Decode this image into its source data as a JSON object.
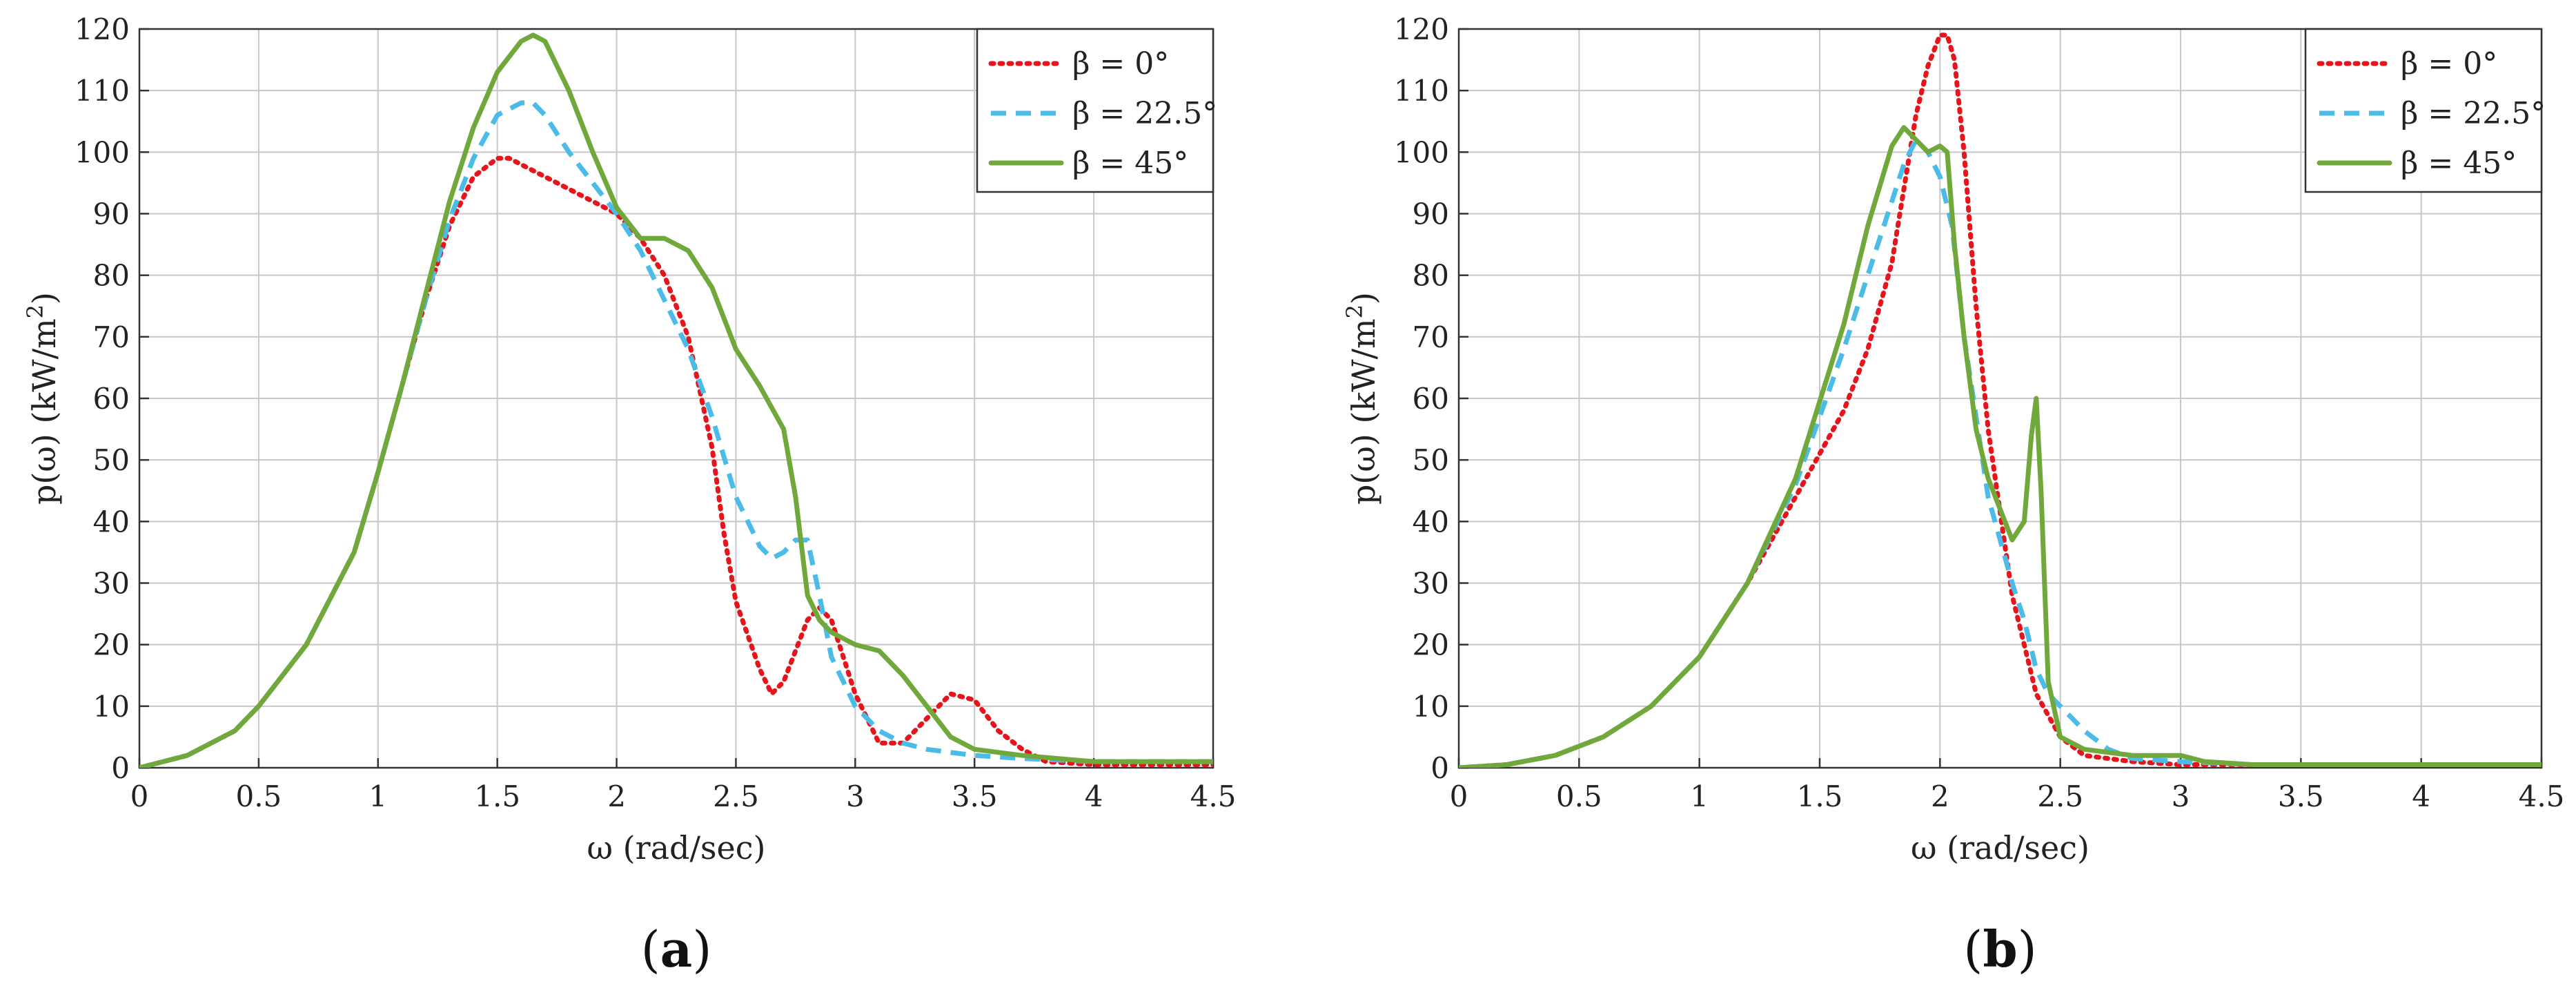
{
  "chart_data": [
    {
      "type": "line",
      "panel_label": "a",
      "xlabel": "ω (rad/sec)",
      "ylabel": "p(ω) (kW/m",
      "ylabel_sup": "2",
      "ylabel_close": ")",
      "xlim": [
        0,
        4.5
      ],
      "ylim": [
        0,
        120
      ],
      "xticks": [
        0,
        0.5,
        1,
        1.5,
        2,
        2.5,
        3,
        3.5,
        4,
        4.5
      ],
      "yticks": [
        0,
        10,
        20,
        30,
        40,
        50,
        60,
        70,
        80,
        90,
        100,
        110,
        120
      ],
      "grid": true,
      "legend_position": "top-right",
      "series": [
        {
          "name": "β = 0°",
          "color": "#e8141c",
          "style": "dotted",
          "x": [
            0,
            0.2,
            0.4,
            0.5,
            0.7,
            0.9,
            1.0,
            1.1,
            1.2,
            1.3,
            1.4,
            1.5,
            1.55,
            1.6,
            1.7,
            1.8,
            1.9,
            2.0,
            2.1,
            2.2,
            2.3,
            2.4,
            2.45,
            2.5,
            2.6,
            2.65,
            2.7,
            2.8,
            2.85,
            2.9,
            3.0,
            3.1,
            3.2,
            3.3,
            3.4,
            3.5,
            3.6,
            3.7,
            3.8,
            4.0,
            4.2,
            4.5
          ],
          "y": [
            0,
            2,
            6,
            10,
            20,
            35,
            48,
            62,
            76,
            88,
            96,
            99,
            99,
            98,
            96,
            94,
            92,
            90,
            86,
            80,
            70,
            52,
            38,
            27,
            16,
            12,
            14,
            24,
            26,
            24,
            12,
            4,
            4,
            8,
            12,
            11,
            6,
            3,
            1,
            0.5,
            0.5,
            0.5
          ]
        },
        {
          "name": "β = 22.5°",
          "color": "#4bbbe8",
          "style": "dashed",
          "x": [
            0,
            0.2,
            0.4,
            0.5,
            0.7,
            0.9,
            1.0,
            1.1,
            1.2,
            1.3,
            1.4,
            1.5,
            1.6,
            1.65,
            1.7,
            1.8,
            1.9,
            2.0,
            2.1,
            2.2,
            2.3,
            2.4,
            2.5,
            2.6,
            2.65,
            2.7,
            2.75,
            2.8,
            2.85,
            2.9,
            3.0,
            3.1,
            3.2,
            3.3,
            3.5,
            3.7,
            4.0,
            4.5
          ],
          "y": [
            0,
            2,
            6,
            10,
            20,
            35,
            48,
            62,
            76,
            89,
            99,
            106,
            108,
            108,
            106,
            100,
            95,
            90,
            84,
            76,
            68,
            57,
            44,
            36,
            34,
            35,
            37,
            37,
            28,
            18,
            10,
            6,
            4,
            3,
            2,
            1.5,
            1,
            1
          ]
        },
        {
          "name": "β = 45°",
          "color": "#70a83c",
          "style": "solid",
          "x": [
            0,
            0.2,
            0.4,
            0.5,
            0.7,
            0.9,
            1.0,
            1.1,
            1.2,
            1.3,
            1.4,
            1.5,
            1.6,
            1.65,
            1.7,
            1.8,
            1.9,
            2.0,
            2.1,
            2.2,
            2.3,
            2.4,
            2.5,
            2.6,
            2.7,
            2.75,
            2.8,
            2.85,
            2.9,
            3.0,
            3.1,
            3.2,
            3.3,
            3.4,
            3.5,
            3.7,
            4.0,
            4.5
          ],
          "y": [
            0,
            2,
            6,
            10,
            20,
            35,
            48,
            62,
            77,
            92,
            104,
            113,
            118,
            119,
            118,
            110,
            100,
            91,
            86,
            86,
            84,
            78,
            68,
            62,
            55,
            44,
            28,
            24,
            22,
            20,
            19,
            15,
            10,
            5,
            3,
            2,
            1,
            1
          ]
        }
      ]
    },
    {
      "type": "line",
      "panel_label": "b",
      "xlabel": "ω (rad/sec)",
      "ylabel": "p(ω) (kW/m",
      "ylabel_sup": "2",
      "ylabel_close": ")",
      "xlim": [
        0,
        4.5
      ],
      "ylim": [
        0,
        120
      ],
      "xticks": [
        0,
        0.5,
        1,
        1.5,
        2,
        2.5,
        3,
        3.5,
        4,
        4.5
      ],
      "yticks": [
        0,
        10,
        20,
        30,
        40,
        50,
        60,
        70,
        80,
        90,
        100,
        110,
        120
      ],
      "grid": true,
      "legend_position": "top-right",
      "series": [
        {
          "name": "β = 0°",
          "color": "#e8141c",
          "style": "dotted",
          "x": [
            0,
            0.2,
            0.4,
            0.6,
            0.8,
            1.0,
            1.2,
            1.4,
            1.6,
            1.7,
            1.8,
            1.85,
            1.9,
            1.95,
            2.0,
            2.03,
            2.06,
            2.1,
            2.15,
            2.2,
            2.3,
            2.4,
            2.5,
            2.6,
            2.8,
            3.0,
            3.3,
            3.6,
            4.0,
            4.5
          ],
          "y": [
            0,
            0.5,
            2,
            5,
            10,
            18,
            30,
            44,
            58,
            68,
            82,
            94,
            106,
            114,
            119,
            119,
            115,
            100,
            75,
            55,
            28,
            12,
            5,
            2,
            1,
            0.5,
            0.5,
            0.5,
            0.5,
            0.5
          ]
        },
        {
          "name": "β = 22.5°",
          "color": "#4bbbe8",
          "style": "dashed",
          "x": [
            0,
            0.2,
            0.4,
            0.6,
            0.8,
            1.0,
            1.2,
            1.4,
            1.6,
            1.7,
            1.8,
            1.85,
            1.9,
            1.95,
            2.0,
            2.05,
            2.1,
            2.2,
            2.3,
            2.35,
            2.4,
            2.45,
            2.5,
            2.6,
            2.7,
            2.8,
            3.0,
            3.3,
            3.6,
            4.0,
            4.5
          ],
          "y": [
            0,
            0.5,
            2,
            5,
            10,
            18,
            30,
            46,
            68,
            80,
            92,
            98,
            102,
            100,
            96,
            88,
            70,
            44,
            30,
            24,
            16,
            12,
            10,
            6,
            3,
            1.5,
            1,
            0.5,
            0.5,
            0.5,
            0.5
          ]
        },
        {
          "name": "β = 45°",
          "color": "#70a83c",
          "style": "solid",
          "x": [
            0,
            0.2,
            0.4,
            0.6,
            0.8,
            1.0,
            1.2,
            1.4,
            1.6,
            1.7,
            1.8,
            1.85,
            1.9,
            1.95,
            2.0,
            2.03,
            2.06,
            2.1,
            2.15,
            2.2,
            2.25,
            2.3,
            2.35,
            2.38,
            2.4,
            2.42,
            2.45,
            2.5,
            2.6,
            2.8,
            3.0,
            3.1,
            3.3,
            3.6,
            4.0,
            4.5
          ],
          "y": [
            0,
            0.5,
            2,
            5,
            10,
            18,
            30,
            47,
            72,
            88,
            101,
            104,
            102,
            100,
            101,
            100,
            85,
            70,
            55,
            47,
            42,
            37,
            40,
            54,
            60,
            45,
            14,
            5,
            3,
            2,
            2,
            1,
            0.5,
            0.5,
            0.5,
            0.5
          ]
        }
      ]
    }
  ]
}
